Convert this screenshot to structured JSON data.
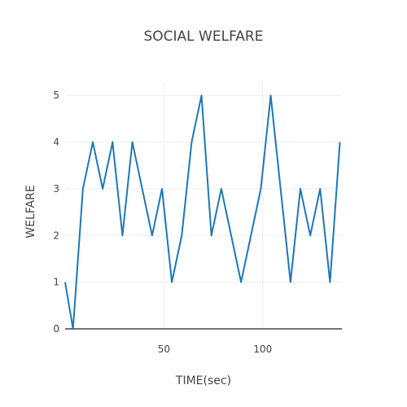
{
  "chart_data": {
    "type": "line",
    "title": "SOCIAL WELFARE",
    "xlabel": "TIME(sec)",
    "ylabel": "WELFARE",
    "xlim": [
      0,
      140
    ],
    "ylim": [
      0,
      5.3
    ],
    "x_ticks": [
      50,
      100
    ],
    "y_ticks": [
      0,
      1,
      2,
      3,
      4,
      5
    ],
    "grid": true,
    "series": [
      {
        "color": "#1f77b4",
        "x": [
          0,
          4,
          9,
          14,
          19,
          24,
          29,
          34,
          39,
          44,
          49,
          54,
          59,
          64,
          69,
          74,
          79,
          84,
          89,
          94,
          99,
          104,
          109,
          114,
          119,
          124,
          129,
          134,
          139
        ],
        "y": [
          1,
          0,
          3,
          4,
          3,
          4,
          2,
          4,
          3,
          2,
          3,
          1,
          2,
          4,
          5,
          2,
          3,
          2,
          1,
          2,
          3,
          5,
          3,
          1,
          3,
          2,
          3,
          1,
          4
        ]
      }
    ]
  }
}
